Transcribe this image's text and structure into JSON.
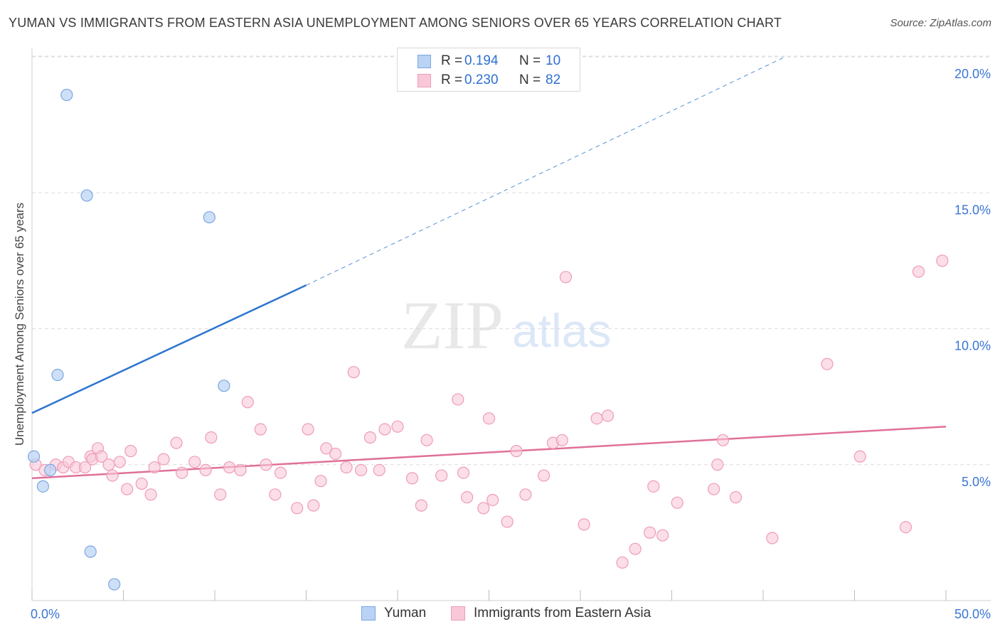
{
  "title": "YUMAN VS IMMIGRANTS FROM EASTERN ASIA UNEMPLOYMENT AMONG SENIORS OVER 65 YEARS CORRELATION CHART",
  "source": "Source: ZipAtlas.com",
  "watermark": {
    "zip": "ZIP",
    "atlas": "atlas"
  },
  "legend_top": [
    {
      "r_label": "R =",
      "r_value": "0.194",
      "n_label": "N =",
      "n_value": "10"
    },
    {
      "r_label": "R =",
      "r_value": "0.230",
      "n_label": "N =",
      "n_value": "82"
    }
  ],
  "legend_bottom": [
    "Yuman",
    "Immigrants from Eastern Asia"
  ],
  "colors": {
    "yuman_fill": "#b9d3f5",
    "yuman_stroke": "#7aa6e0",
    "yuman_line": "#2c74d0",
    "asia_fill": "#f9c8d8",
    "asia_stroke": "#ee9cb8",
    "asia_line": "#e0709a",
    "tick_label": "#3b75d6",
    "grid": "#dedede"
  },
  "chart_data": {
    "type": "scatter",
    "title": "YUMAN VS IMMIGRANTS FROM EASTERN ASIA UNEMPLOYMENT AMONG SENIORS OVER 65 YEARS CORRELATION CHART",
    "xlabel": "",
    "ylabel": "Unemployment Among Seniors over 65 years",
    "xlim": [
      0,
      50
    ],
    "ylim": [
      0,
      20.5
    ],
    "x_tick_labels": [
      "0.0%",
      "50.0%"
    ],
    "y_ticks": [
      5,
      10,
      15,
      20
    ],
    "y_tick_labels": [
      "5.0%",
      "10.0%",
      "15.0%",
      "20.0%"
    ],
    "grid": true,
    "legend_placement": "top-center",
    "series": [
      {
        "name": "Yuman",
        "R": 0.194,
        "N": 10,
        "points": [
          [
            0.1,
            5.3
          ],
          [
            0.6,
            4.2
          ],
          [
            1.0,
            4.8
          ],
          [
            1.4,
            8.3
          ],
          [
            1.9,
            18.6
          ],
          [
            3.0,
            14.9
          ],
          [
            3.2,
            1.8
          ],
          [
            4.5,
            0.6
          ],
          [
            9.7,
            14.1
          ],
          [
            10.5,
            7.9
          ]
        ],
        "trend": {
          "x0": 0,
          "y0": 6.9,
          "x_solid_end": 15,
          "y_solid_end": 11.6,
          "x1": 41.2,
          "y1": 20.0
        }
      },
      {
        "name": "Immigrants from Eastern Asia",
        "R": 0.23,
        "N": 82,
        "points": [
          [
            0.2,
            5.0
          ],
          [
            0.7,
            4.8
          ],
          [
            1.3,
            5.0
          ],
          [
            1.7,
            4.9
          ],
          [
            2.0,
            5.1
          ],
          [
            2.4,
            4.9
          ],
          [
            2.9,
            4.9
          ],
          [
            3.2,
            5.3
          ],
          [
            3.3,
            5.2
          ],
          [
            3.6,
            5.6
          ],
          [
            3.8,
            5.3
          ],
          [
            4.2,
            5.0
          ],
          [
            4.4,
            4.6
          ],
          [
            4.8,
            5.1
          ],
          [
            5.2,
            4.1
          ],
          [
            5.4,
            5.5
          ],
          [
            6.0,
            4.3
          ],
          [
            6.5,
            3.9
          ],
          [
            6.7,
            4.9
          ],
          [
            7.2,
            5.2
          ],
          [
            7.9,
            5.8
          ],
          [
            8.2,
            4.7
          ],
          [
            8.9,
            5.1
          ],
          [
            9.5,
            4.8
          ],
          [
            9.8,
            6.0
          ],
          [
            10.3,
            3.9
          ],
          [
            10.8,
            4.9
          ],
          [
            11.4,
            4.8
          ],
          [
            11.8,
            7.3
          ],
          [
            12.5,
            6.3
          ],
          [
            12.8,
            5.0
          ],
          [
            13.3,
            3.9
          ],
          [
            13.6,
            4.7
          ],
          [
            14.5,
            3.4
          ],
          [
            15.1,
            6.3
          ],
          [
            15.4,
            3.5
          ],
          [
            15.8,
            4.4
          ],
          [
            16.1,
            5.6
          ],
          [
            16.6,
            5.4
          ],
          [
            17.2,
            4.9
          ],
          [
            17.6,
            8.4
          ],
          [
            18.0,
            4.8
          ],
          [
            18.5,
            6.0
          ],
          [
            19.0,
            4.8
          ],
          [
            19.3,
            6.3
          ],
          [
            20.0,
            6.4
          ],
          [
            20.8,
            4.5
          ],
          [
            21.3,
            3.5
          ],
          [
            21.6,
            5.9
          ],
          [
            22.4,
            4.6
          ],
          [
            23.3,
            7.4
          ],
          [
            23.6,
            4.7
          ],
          [
            23.8,
            3.8
          ],
          [
            24.7,
            3.4
          ],
          [
            25.0,
            6.7
          ],
          [
            25.2,
            3.7
          ],
          [
            26.0,
            2.9
          ],
          [
            26.5,
            5.5
          ],
          [
            27.0,
            3.9
          ],
          [
            28.0,
            4.6
          ],
          [
            28.5,
            5.8
          ],
          [
            29.0,
            5.9
          ],
          [
            29.2,
            11.9
          ],
          [
            30.2,
            2.8
          ],
          [
            30.9,
            6.7
          ],
          [
            31.5,
            6.8
          ],
          [
            32.3,
            1.4
          ],
          [
            33.0,
            1.9
          ],
          [
            33.8,
            2.5
          ],
          [
            34.0,
            4.2
          ],
          [
            34.5,
            2.4
          ],
          [
            35.3,
            3.6
          ],
          [
            37.3,
            4.1
          ],
          [
            37.5,
            5.0
          ],
          [
            37.8,
            5.9
          ],
          [
            38.5,
            3.8
          ],
          [
            40.5,
            2.3
          ],
          [
            43.5,
            8.7
          ],
          [
            45.3,
            5.3
          ],
          [
            47.8,
            2.7
          ],
          [
            48.5,
            12.1
          ],
          [
            49.8,
            12.5
          ]
        ],
        "trend": {
          "x0": 0,
          "y0": 4.5,
          "x1": 50,
          "y1": 6.4
        }
      }
    ]
  }
}
